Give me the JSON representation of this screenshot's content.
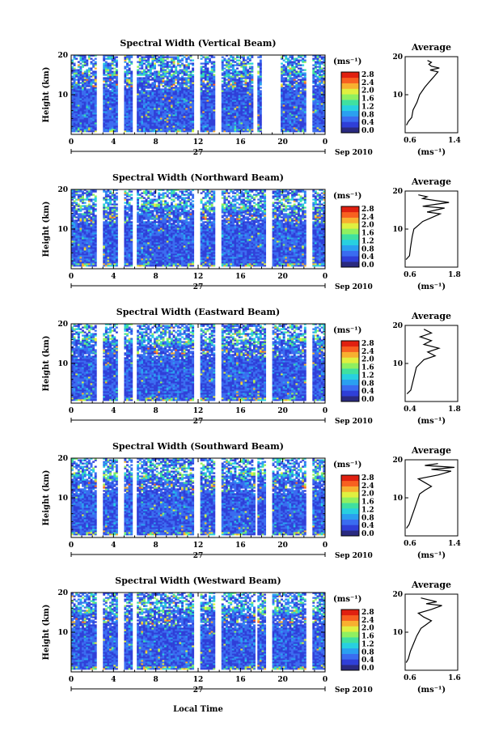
{
  "footer_label": "Local Time",
  "colorbar_unit": "(ms⁻¹)",
  "colorbar_ticks": [
    "0.0",
    "0.4",
    "0.8",
    "1.2",
    "1.6",
    "2.0",
    "2.4",
    "2.8"
  ],
  "date_label": "Sep 2010",
  "day_label": "27",
  "average_title": "Average",
  "average_unit": "(ms⁻¹)",
  "height_label": "Height (km)",
  "time_ticks": [
    "0",
    "4",
    "8",
    "12",
    "16",
    "20",
    "0"
  ],
  "height_ticks": [
    "10",
    "20"
  ],
  "palette": [
    "#2a2a80",
    "#2f3fd8",
    "#3a6cf0",
    "#2aa0f0",
    "#28d0e0",
    "#40e0a0",
    "#90f060",
    "#e0f040",
    "#f8b030",
    "#f86020",
    "#e02010"
  ],
  "chart_data": [
    {
      "type": "heatmap",
      "title": "Spectral Width (Vertical Beam)",
      "gaps": [
        [
          2.5,
          3.1
        ],
        [
          4.5,
          4.9
        ],
        [
          5.7,
          6.1
        ],
        [
          11.7,
          12.1
        ],
        [
          13.6,
          14.2
        ],
        [
          17.3,
          17.5
        ],
        [
          18.0,
          19.8
        ],
        [
          22.3,
          22.7
        ]
      ],
      "top_km": 19.5,
      "profile": {
        "xlim": [
          0.6,
          1.4
        ],
        "xticks": [
          "0.6",
          "1.4"
        ],
        "points": [
          [
            0.62,
            2
          ],
          [
            0.65,
            3
          ],
          [
            0.7,
            4
          ],
          [
            0.72,
            6
          ],
          [
            0.78,
            8
          ],
          [
            0.82,
            10
          ],
          [
            0.9,
            12
          ],
          [
            0.95,
            13
          ],
          [
            1.0,
            14
          ],
          [
            1.05,
            15
          ],
          [
            1.1,
            16
          ],
          [
            0.98,
            16.5
          ],
          [
            1.12,
            17
          ],
          [
            1.0,
            17.5
          ],
          [
            0.96,
            18
          ],
          [
            1.0,
            18.5
          ],
          [
            0.94,
            19
          ]
        ]
      }
    },
    {
      "type": "heatmap",
      "title": "Spectral Width (Northward Beam)",
      "gaps": [
        [
          2.5,
          3.1
        ],
        [
          4.5,
          4.9
        ],
        [
          5.7,
          6.1
        ],
        [
          11.7,
          12.1
        ],
        [
          13.6,
          14.2
        ],
        [
          18.4,
          18.9
        ],
        [
          22.3,
          22.7
        ]
      ],
      "top_km": 19.5,
      "profile": {
        "xlim": [
          0.6,
          1.8
        ],
        "xticks": [
          "0.6",
          "1.8"
        ],
        "points": [
          [
            0.62,
            2
          ],
          [
            0.7,
            3
          ],
          [
            0.72,
            5
          ],
          [
            0.76,
            8
          ],
          [
            0.8,
            10
          ],
          [
            0.9,
            11
          ],
          [
            1.0,
            12
          ],
          [
            1.2,
            13
          ],
          [
            1.4,
            14
          ],
          [
            1.1,
            14.5
          ],
          [
            1.3,
            15
          ],
          [
            1.5,
            15.5
          ],
          [
            1.0,
            16
          ],
          [
            1.3,
            16.5
          ],
          [
            1.6,
            17
          ],
          [
            1.0,
            18
          ],
          [
            1.1,
            18.5
          ],
          [
            0.9,
            19
          ]
        ]
      }
    },
    {
      "type": "heatmap",
      "title": "Spectral Width (Eastward Beam)",
      "gaps": [
        [
          2.5,
          3.1
        ],
        [
          4.5,
          4.9
        ],
        [
          5.7,
          6.1
        ],
        [
          11.7,
          12.1
        ],
        [
          13.6,
          14.2
        ],
        [
          18.4,
          18.9
        ],
        [
          22.3,
          22.7
        ]
      ],
      "top_km": 19.5,
      "profile": {
        "xlim": [
          0.4,
          1.8
        ],
        "xticks": [
          "0.4",
          "1.8"
        ],
        "points": [
          [
            0.45,
            2
          ],
          [
            0.55,
            3
          ],
          [
            0.6,
            5
          ],
          [
            0.65,
            7
          ],
          [
            0.7,
            9
          ],
          [
            0.8,
            10
          ],
          [
            0.9,
            11
          ],
          [
            1.2,
            12
          ],
          [
            1.0,
            13
          ],
          [
            1.3,
            14
          ],
          [
            0.9,
            15
          ],
          [
            1.1,
            16
          ],
          [
            0.8,
            17
          ],
          [
            1.1,
            18
          ],
          [
            0.9,
            19
          ]
        ]
      }
    },
    {
      "type": "heatmap",
      "title": "Spectral Width (Southward Beam)",
      "gaps": [
        [
          2.5,
          3.1
        ],
        [
          4.5,
          4.9
        ],
        [
          5.7,
          6.1
        ],
        [
          11.7,
          12.1
        ],
        [
          13.6,
          14.2
        ],
        [
          17.4,
          17.6
        ],
        [
          18.4,
          18.9
        ],
        [
          22.3,
          22.7
        ]
      ],
      "top_km": 19.5,
      "profile": {
        "xlim": [
          0.6,
          1.4
        ],
        "xticks": [
          "0.6",
          "1.4"
        ],
        "points": [
          [
            0.62,
            2
          ],
          [
            0.66,
            3
          ],
          [
            0.7,
            5
          ],
          [
            0.74,
            7
          ],
          [
            0.78,
            9
          ],
          [
            0.82,
            11
          ],
          [
            0.9,
            12
          ],
          [
            1.0,
            13
          ],
          [
            0.9,
            14
          ],
          [
            0.8,
            15
          ],
          [
            1.1,
            16
          ],
          [
            1.3,
            17
          ],
          [
            1.0,
            17.5
          ],
          [
            1.35,
            18
          ],
          [
            0.9,
            18.5
          ],
          [
            1.1,
            19
          ]
        ]
      }
    },
    {
      "type": "heatmap",
      "title": "Spectral Width (Westward Beam)",
      "gaps": [
        [
          2.5,
          3.1
        ],
        [
          4.5,
          4.9
        ],
        [
          5.7,
          6.1
        ],
        [
          11.7,
          12.1
        ],
        [
          13.6,
          14.2
        ],
        [
          17.4,
          17.6
        ],
        [
          18.4,
          18.9
        ],
        [
          22.3,
          22.7
        ]
      ],
      "top_km": 19.5,
      "profile": {
        "xlim": [
          0.6,
          1.6
        ],
        "xticks": [
          "0.6",
          "1.6"
        ],
        "points": [
          [
            0.62,
            2
          ],
          [
            0.66,
            3
          ],
          [
            0.7,
            5
          ],
          [
            0.76,
            7
          ],
          [
            0.82,
            9
          ],
          [
            0.9,
            11
          ],
          [
            1.0,
            12
          ],
          [
            1.1,
            13
          ],
          [
            0.95,
            14
          ],
          [
            0.85,
            15
          ],
          [
            1.1,
            16
          ],
          [
            1.3,
            17
          ],
          [
            1.0,
            17.5
          ],
          [
            1.2,
            18
          ],
          [
            0.9,
            19
          ]
        ]
      }
    }
  ]
}
